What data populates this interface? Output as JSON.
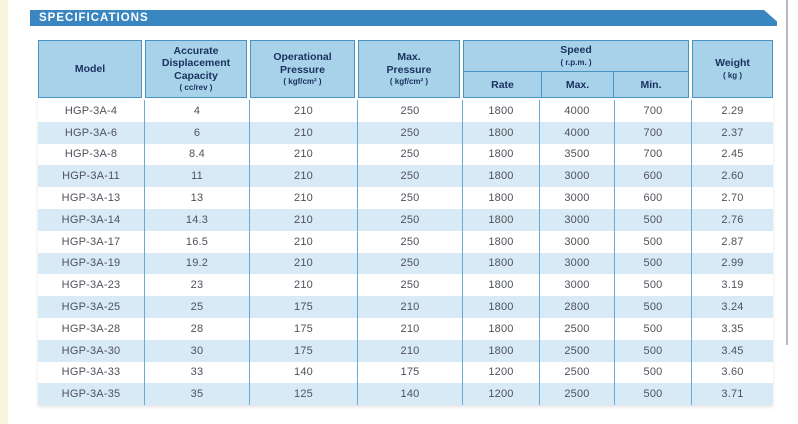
{
  "banner": {
    "label": "SPECIFICATIONS"
  },
  "table": {
    "headers": {
      "model": "Model",
      "capacity": "Accurate Displacement Capacity",
      "capacity_unit": "( cc/rev )",
      "op_pressure": "Operational Pressure",
      "op_pressure_unit": "( kgf/cm² )",
      "max_pressure": "Max. Pressure",
      "max_pressure_unit": "( kgf/cm² )",
      "speed": "Speed",
      "speed_unit": "( r.p.m. )",
      "rate": "Rate",
      "max": "Max.",
      "min": "Min.",
      "weight": "Weight",
      "weight_unit": "( kg )"
    },
    "rows": [
      [
        "HGP-3A-4",
        "4",
        "210",
        "250",
        "1800",
        "4000",
        "700",
        "2.29"
      ],
      [
        "HGP-3A-6",
        "6",
        "210",
        "250",
        "1800",
        "4000",
        "700",
        "2.37"
      ],
      [
        "HGP-3A-8",
        "8.4",
        "210",
        "250",
        "1800",
        "3500",
        "700",
        "2.45"
      ],
      [
        "HGP-3A-11",
        "11",
        "210",
        "250",
        "1800",
        "3000",
        "600",
        "2.60"
      ],
      [
        "HGP-3A-13",
        "13",
        "210",
        "250",
        "1800",
        "3000",
        "600",
        "2.70"
      ],
      [
        "HGP-3A-14",
        "14.3",
        "210",
        "250",
        "1800",
        "3000",
        "500",
        "2.76"
      ],
      [
        "HGP-3A-17",
        "16.5",
        "210",
        "250",
        "1800",
        "3000",
        "500",
        "2.87"
      ],
      [
        "HGP-3A-19",
        "19.2",
        "210",
        "250",
        "1800",
        "3000",
        "500",
        "2.99"
      ],
      [
        "HGP-3A-23",
        "23",
        "210",
        "250",
        "1800",
        "3000",
        "500",
        "3.19"
      ],
      [
        "HGP-3A-25",
        "25",
        "175",
        "210",
        "1800",
        "2800",
        "500",
        "3.24"
      ],
      [
        "HGP-3A-28",
        "28",
        "175",
        "210",
        "1800",
        "2500",
        "500",
        "3.35"
      ],
      [
        "HGP-3A-30",
        "30",
        "175",
        "210",
        "1800",
        "2500",
        "500",
        "3.45"
      ],
      [
        "HGP-3A-33",
        "33",
        "140",
        "175",
        "1200",
        "2500",
        "500",
        "3.60"
      ],
      [
        "HGP-3A-35",
        "35",
        "125",
        "140",
        "1200",
        "2500",
        "500",
        "3.71"
      ]
    ]
  },
  "colors": {
    "banner_blue": "#3a86c1",
    "header_blue": "#a8d2e9",
    "header_border": "#4a93c5",
    "header_text": "#1b3260",
    "stripe_blue": "#d9eaf7",
    "grid_line": "#6aa9d4",
    "data_text": "#4e525a",
    "edge_cream": "#faf6dd",
    "page_border": "#9aa3ae"
  }
}
